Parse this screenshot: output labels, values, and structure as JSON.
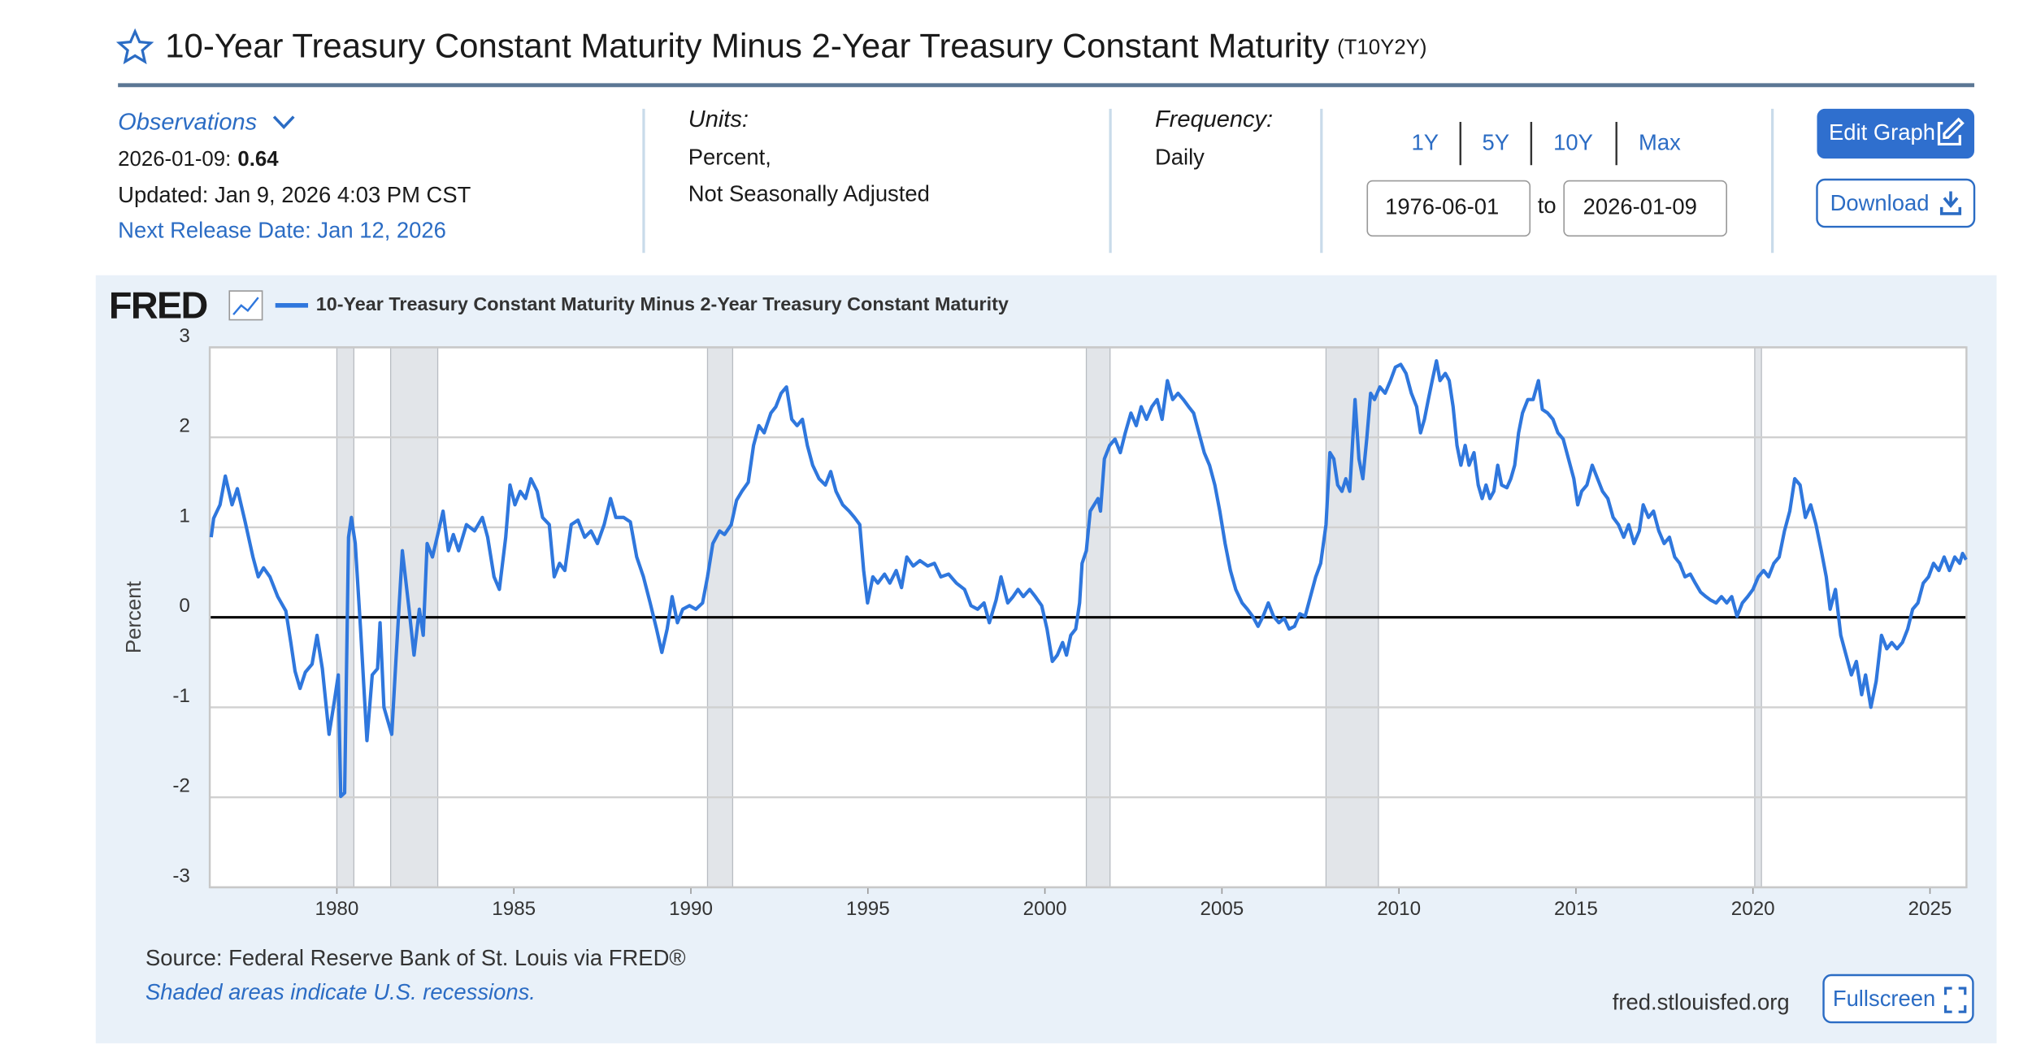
{
  "header": {
    "title": "10-Year Treasury Constant Maturity Minus 2-Year Treasury Constant Maturity",
    "series_id": "(T10Y2Y)"
  },
  "meta": {
    "observations_label": "Observations",
    "latest_date": "2026-01-09:",
    "latest_value": "0.64",
    "updated": "Updated: Jan 9, 2026 4:03 PM CST",
    "next_release": "Next Release Date: Jan 12, 2026",
    "units_label": "Units:",
    "units": [
      "Percent,",
      "Not Seasonally Adjusted"
    ],
    "frequency_label": "Frequency:",
    "frequency": "Daily"
  },
  "controls": {
    "ranges": [
      "1Y",
      "5Y",
      "10Y",
      "Max"
    ],
    "start": "1976-06-01",
    "to": "to",
    "end": "2026-01-09",
    "edit": "Edit Graph",
    "download": "Download"
  },
  "chart_data": {
    "type": "line",
    "logo": "FRED",
    "y_label": "Percent",
    "xlim": [
      1976.41,
      2026.03
    ],
    "xticks": [
      1980,
      1985,
      1990,
      1995,
      2000,
      2005,
      2010,
      2015,
      2020,
      2025
    ],
    "ylim": [
      -3,
      3
    ],
    "yticks": [
      -3,
      -2,
      -1,
      0,
      1,
      2,
      3
    ],
    "grid": true,
    "recessions": [
      [
        1980.0,
        1980.48
      ],
      [
        1981.52,
        1982.85
      ],
      [
        1990.47,
        1991.18
      ],
      [
        2001.17,
        2001.84
      ],
      [
        2007.94,
        2009.42
      ],
      [
        2020.05,
        2020.24
      ]
    ],
    "x": [
      1976.45,
      1976.52,
      1976.7,
      1976.85,
      1977.04,
      1977.19,
      1977.41,
      1977.63,
      1977.78,
      1977.93,
      1978.11,
      1978.33,
      1978.56,
      1978.7,
      1978.82,
      1978.96,
      1979.11,
      1979.3,
      1979.44,
      1979.59,
      1979.78,
      1979.93,
      1980.04,
      1980.11,
      1980.22,
      1980.33,
      1980.41,
      1980.52,
      1980.67,
      1980.85,
      1981.0,
      1981.15,
      1981.22,
      1981.33,
      1981.55,
      1981.67,
      1981.85,
      1982.04,
      1982.18,
      1982.33,
      1982.44,
      1982.55,
      1982.7,
      1982.85,
      1983.0,
      1983.15,
      1983.29,
      1983.44,
      1983.66,
      1983.89,
      1984.11,
      1984.26,
      1984.44,
      1984.59,
      1984.77,
      1984.89,
      1985.03,
      1985.18,
      1985.33,
      1985.48,
      1985.66,
      1985.81,
      1986.0,
      1986.14,
      1986.29,
      1986.44,
      1986.62,
      1986.81,
      1987.0,
      1987.18,
      1987.36,
      1987.55,
      1987.73,
      1987.88,
      1988.1,
      1988.29,
      1988.47,
      1988.66,
      1988.85,
      1989.03,
      1989.18,
      1989.33,
      1989.47,
      1989.62,
      1989.77,
      1989.96,
      1990.14,
      1990.33,
      1990.47,
      1990.62,
      1990.81,
      1990.95,
      1991.14,
      1991.29,
      1991.44,
      1991.62,
      1991.77,
      1991.92,
      1992.07,
      1992.26,
      1992.4,
      1992.55,
      1992.7,
      1992.85,
      1993.0,
      1993.15,
      1993.29,
      1993.44,
      1993.62,
      1993.8,
      1993.95,
      1994.1,
      1994.29,
      1994.47,
      1994.62,
      1994.77,
      1994.88,
      1994.99,
      1995.14,
      1995.28,
      1995.47,
      1995.62,
      1995.8,
      1995.95,
      1996.1,
      1996.28,
      1996.47,
      1996.69,
      1996.88,
      1997.06,
      1997.28,
      1997.5,
      1997.73,
      1997.91,
      1998.1,
      1998.28,
      1998.43,
      1998.62,
      1998.76,
      1998.95,
      1999.1,
      1999.24,
      1999.39,
      1999.57,
      1999.73,
      1999.91,
      2000.06,
      2000.21,
      2000.35,
      2000.5,
      2000.61,
      2000.73,
      2000.87,
      2000.98,
      2001.05,
      2001.17,
      2001.28,
      2001.39,
      2001.5,
      2001.57,
      2001.68,
      2001.83,
      2001.98,
      2002.13,
      2002.27,
      2002.43,
      2002.58,
      2002.72,
      2002.87,
      2003.02,
      2003.17,
      2003.31,
      2003.46,
      2003.61,
      2003.76,
      2003.91,
      2004.06,
      2004.2,
      2004.35,
      2004.5,
      2004.65,
      2004.8,
      2004.94,
      2005.09,
      2005.24,
      2005.39,
      2005.57,
      2005.72,
      2005.87,
      2006.02,
      2006.16,
      2006.31,
      2006.46,
      2006.61,
      2006.76,
      2006.9,
      2007.05,
      2007.2,
      2007.35,
      2007.5,
      2007.65,
      2007.79,
      2007.94,
      2008.05,
      2008.16,
      2008.27,
      2008.39,
      2008.5,
      2008.61,
      2008.76,
      2008.87,
      2008.98,
      2009.09,
      2009.2,
      2009.31,
      2009.46,
      2009.61,
      2009.76,
      2009.9,
      2010.05,
      2010.2,
      2010.35,
      2010.5,
      2010.61,
      2010.72,
      2010.83,
      2010.94,
      2011.06,
      2011.16,
      2011.31,
      2011.42,
      2011.53,
      2011.64,
      2011.75,
      2011.87,
      2011.98,
      2012.12,
      2012.24,
      2012.35,
      2012.46,
      2012.57,
      2012.68,
      2012.79,
      2012.9,
      2013.05,
      2013.16,
      2013.27,
      2013.38,
      2013.49,
      2013.64,
      2013.79,
      2013.94,
      2014.05,
      2014.2,
      2014.35,
      2014.49,
      2014.64,
      2014.79,
      2014.94,
      2015.05,
      2015.16,
      2015.31,
      2015.46,
      2015.61,
      2015.75,
      2015.9,
      2016.05,
      2016.2,
      2016.35,
      2016.49,
      2016.64,
      2016.79,
      2016.9,
      2017.05,
      2017.19,
      2017.34,
      2017.49,
      2017.64,
      2017.79,
      2017.93,
      2018.08,
      2018.23,
      2018.37,
      2018.52,
      2018.67,
      2018.81,
      2018.96,
      2019.11,
      2019.26,
      2019.4,
      2019.55,
      2019.7,
      2019.85,
      2020.0,
      2020.15,
      2020.3,
      2020.44,
      2020.59,
      2020.74,
      2020.89,
      2021.04,
      2021.18,
      2021.33,
      2021.48,
      2021.63,
      2021.78,
      2021.93,
      2022.07,
      2022.18,
      2022.33,
      2022.48,
      2022.63,
      2022.78,
      2022.92,
      2023.07,
      2023.18,
      2023.33,
      2023.48,
      2023.63,
      2023.78,
      2023.92,
      2024.07,
      2024.22,
      2024.37,
      2024.51,
      2024.66,
      2024.81,
      2024.96,
      2025.1,
      2025.25,
      2025.4,
      2025.55,
      2025.7,
      2025.84,
      2025.92,
      2026.02
    ],
    "series": [
      {
        "name": "10-Year Treasury Constant Maturity Minus 2-Year Treasury Constant Maturity",
        "color": "#2f77dd",
        "values": [
          0.89,
          1.1,
          1.25,
          1.57,
          1.25,
          1.43,
          1.06,
          0.67,
          0.45,
          0.55,
          0.45,
          0.23,
          0.07,
          -0.28,
          -0.6,
          -0.79,
          -0.61,
          -0.52,
          -0.2,
          -0.57,
          -1.3,
          -0.93,
          -0.64,
          -1.99,
          -1.95,
          0.89,
          1.11,
          0.82,
          -0.13,
          -1.37,
          -0.64,
          -0.57,
          -0.06,
          -1.0,
          -1.3,
          -0.47,
          0.74,
          0.09,
          -0.42,
          0.09,
          -0.2,
          0.82,
          0.67,
          0.92,
          1.18,
          0.74,
          0.92,
          0.74,
          1.03,
          0.96,
          1.11,
          0.89,
          0.45,
          0.31,
          0.89,
          1.47,
          1.25,
          1.4,
          1.32,
          1.54,
          1.4,
          1.11,
          1.03,
          0.45,
          0.6,
          0.52,
          1.03,
          1.08,
          0.89,
          0.96,
          0.82,
          1.03,
          1.32,
          1.11,
          1.11,
          1.06,
          0.67,
          0.45,
          0.16,
          -0.13,
          -0.39,
          -0.13,
          0.23,
          -0.06,
          0.09,
          0.13,
          0.09,
          0.16,
          0.45,
          0.82,
          0.96,
          0.92,
          1.03,
          1.3,
          1.4,
          1.5,
          1.91,
          2.13,
          2.05,
          2.27,
          2.34,
          2.49,
          2.56,
          2.2,
          2.13,
          2.2,
          1.91,
          1.69,
          1.54,
          1.47,
          1.62,
          1.4,
          1.25,
          1.18,
          1.11,
          1.03,
          0.52,
          0.16,
          0.45,
          0.38,
          0.48,
          0.38,
          0.52,
          0.33,
          0.67,
          0.57,
          0.63,
          0.57,
          0.6,
          0.45,
          0.48,
          0.38,
          0.31,
          0.13,
          0.09,
          0.16,
          -0.06,
          0.19,
          0.45,
          0.16,
          0.23,
          0.31,
          0.23,
          0.31,
          0.23,
          0.13,
          -0.13,
          -0.49,
          -0.42,
          -0.28,
          -0.42,
          -0.2,
          -0.13,
          0.16,
          0.6,
          0.74,
          1.18,
          1.25,
          1.32,
          1.18,
          1.76,
          1.91,
          1.98,
          1.83,
          2.05,
          2.27,
          2.13,
          2.34,
          2.2,
          2.34,
          2.42,
          2.2,
          2.63,
          2.42,
          2.49,
          2.42,
          2.34,
          2.27,
          2.05,
          1.83,
          1.69,
          1.47,
          1.18,
          0.82,
          0.52,
          0.31,
          0.16,
          0.09,
          0.01,
          -0.1,
          0.01,
          0.16,
          0.01,
          -0.06,
          -0.01,
          -0.13,
          -0.1,
          0.04,
          0.01,
          0.23,
          0.45,
          0.6,
          1.03,
          1.83,
          1.76,
          1.47,
          1.4,
          1.54,
          1.4,
          2.42,
          1.76,
          1.54,
          1.98,
          2.49,
          2.42,
          2.56,
          2.49,
          2.63,
          2.78,
          2.81,
          2.71,
          2.49,
          2.34,
          2.05,
          2.2,
          2.42,
          2.63,
          2.85,
          2.63,
          2.71,
          2.63,
          2.34,
          1.91,
          1.69,
          1.91,
          1.69,
          1.83,
          1.47,
          1.32,
          1.47,
          1.32,
          1.4,
          1.69,
          1.47,
          1.44,
          1.54,
          1.69,
          2.05,
          2.27,
          2.42,
          2.42,
          2.63,
          2.31,
          2.27,
          2.2,
          2.05,
          1.98,
          1.76,
          1.54,
          1.25,
          1.4,
          1.47,
          1.69,
          1.54,
          1.4,
          1.32,
          1.11,
          1.03,
          0.89,
          1.03,
          0.82,
          0.96,
          1.25,
          1.11,
          1.18,
          0.96,
          0.82,
          0.89,
          0.67,
          0.6,
          0.45,
          0.48,
          0.38,
          0.28,
          0.23,
          0.19,
          0.16,
          0.23,
          0.16,
          0.23,
          0.01,
          0.16,
          0.23,
          0.31,
          0.45,
          0.52,
          0.45,
          0.6,
          0.67,
          0.96,
          1.18,
          1.54,
          1.47,
          1.11,
          1.25,
          1.03,
          0.74,
          0.45,
          0.09,
          0.31,
          -0.2,
          -0.42,
          -0.64,
          -0.49,
          -0.86,
          -0.64,
          -1.0,
          -0.71,
          -0.2,
          -0.35,
          -0.28,
          -0.35,
          -0.28,
          -0.13,
          0.09,
          0.16,
          0.38,
          0.45,
          0.6,
          0.52,
          0.67,
          0.52,
          0.67,
          0.6,
          0.71,
          0.64
        ]
      }
    ]
  },
  "footer": {
    "source": "Source: Federal Reserve Bank of St. Louis via FRED®",
    "note": "Shaded areas indicate U.S. recessions.",
    "site": "fred.stlouisfed.org",
    "fullscreen": "Fullscreen"
  }
}
